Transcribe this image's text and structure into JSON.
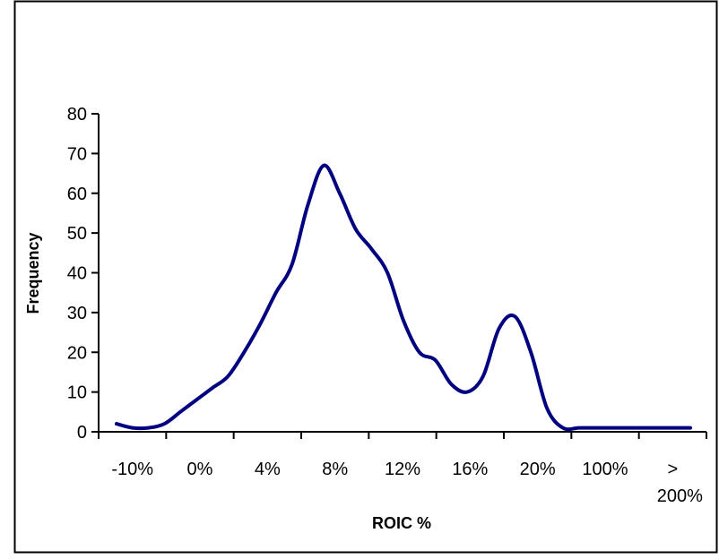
{
  "chart_data": {
    "type": "line",
    "title": "",
    "xlabel": "ROIC %",
    "ylabel": "Frequency",
    "ylim": [
      0,
      80
    ],
    "y_ticks": [
      0,
      10,
      20,
      30,
      40,
      50,
      60,
      70,
      80
    ],
    "x_tick_labels": [
      "-10%",
      "0%",
      "4%",
      "8%",
      "12%",
      "16%",
      "20%",
      "100%",
      "> 200%"
    ],
    "grid": false,
    "legend": "none",
    "line_color": "#000080",
    "series": [
      {
        "name": "",
        "x": [
          0,
          0.5,
          1,
          1.5,
          2,
          2.5,
          3,
          3.5,
          4,
          4.5,
          5,
          5.5,
          6,
          6.5,
          7,
          7.5,
          8,
          8.5,
          9,
          9.5,
          10,
          10.5,
          11,
          11.5,
          12,
          12.5,
          13,
          13.5,
          14,
          14.5,
          15,
          15.5,
          16,
          16.5,
          17,
          17.5,
          18
        ],
        "values": [
          2,
          1,
          1,
          2,
          5,
          8,
          11,
          14,
          20,
          27,
          35,
          42,
          57,
          67,
          60,
          51,
          46,
          40,
          28,
          20,
          18,
          12,
          10,
          14,
          26,
          29,
          20,
          6,
          1,
          1,
          1,
          1,
          1,
          1,
          1,
          1,
          1
        ]
      }
    ]
  }
}
